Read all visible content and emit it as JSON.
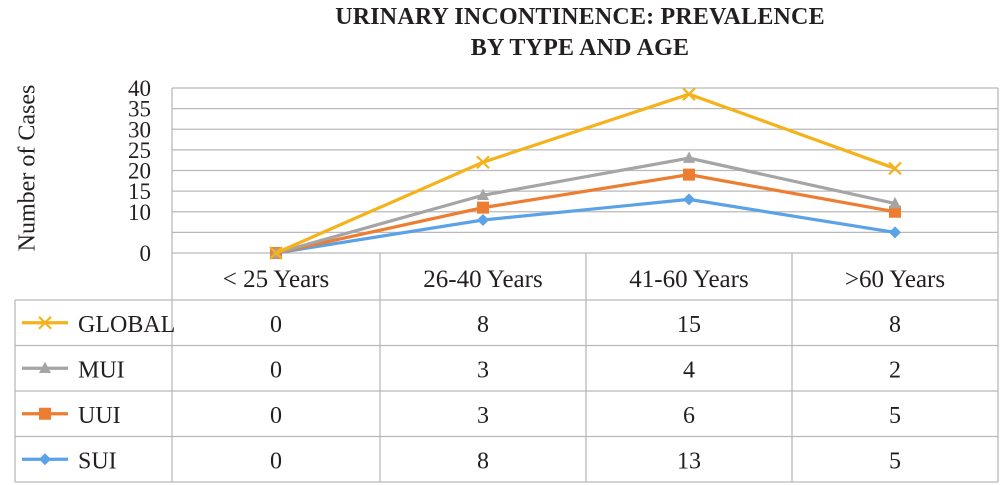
{
  "chart_data": {
    "type": "line",
    "title_lines": [
      "URINARY INCONTINENCE: PREVALENCE",
      "BY TYPE AND AGE"
    ],
    "ylabel": "Number of Cases",
    "xlabel": "",
    "categories": [
      "< 25 Years",
      "26-40 Years",
      "41-60 Years",
      ">60 Years"
    ],
    "ylim": [
      0,
      40
    ],
    "yticks": [
      0,
      10,
      15,
      20,
      25,
      30,
      35,
      40
    ],
    "grid": true,
    "legend": "data-table",
    "series": [
      {
        "name": "GLOBAL",
        "values": [
          0,
          8,
          15,
          8
        ],
        "color": "#f4b21b",
        "marker": "x-icon",
        "plot_y": [
          0,
          22,
          38.5,
          20.5
        ]
      },
      {
        "name": "MUI",
        "values": [
          0,
          3,
          4,
          2
        ],
        "color": "#a5a5a5",
        "marker": "triangle-icon",
        "plot_y": [
          0,
          14,
          23,
          12
        ]
      },
      {
        "name": "UUI",
        "values": [
          0,
          3,
          6,
          5
        ],
        "color": "#ed7d31",
        "marker": "square-icon",
        "plot_y": [
          0,
          11,
          19,
          10
        ]
      },
      {
        "name": "SUI",
        "values": [
          0,
          8,
          13,
          5
        ],
        "color": "#5ba3e6",
        "marker": "diamond-icon",
        "plot_y": [
          0,
          8,
          13,
          5
        ]
      }
    ]
  }
}
